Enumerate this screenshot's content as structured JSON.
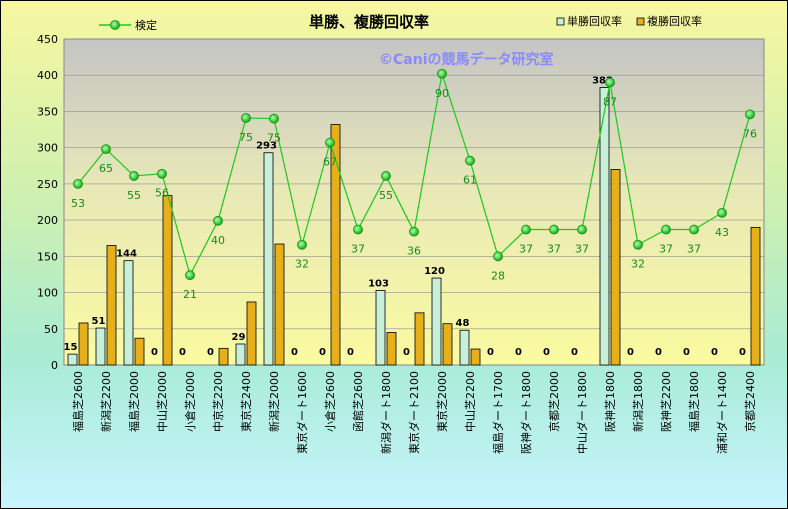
{
  "chart_data": {
    "type": "bar",
    "title": "単勝、複勝回収率",
    "watermark": "©Caniの競馬データ研究室",
    "categories": [
      "福島芝2600",
      "新潟芝2200",
      "福島芝2000",
      "中山芝2000",
      "小倉芝2000",
      "中京芝2200",
      "東京芝2400",
      "新潟芝2000",
      "東京ダート1600",
      "小倉芝2600",
      "函館芝2600",
      "新潟ダート1800",
      "東京ダート2100",
      "東京芝2000",
      "中山芝2200",
      "福島ダート1700",
      "阪神ダート1800",
      "京都芝2000",
      "中山ダート1800",
      "阪神芝1800",
      "新潟芝1800",
      "阪神芝2200",
      "福島芝1800",
      "浦和ダート1400",
      "京都芝2400"
    ],
    "ylim": [
      0,
      450
    ],
    "yticks": [
      "0",
      "50",
      "100",
      "150",
      "200",
      "250",
      "300",
      "350",
      "400",
      "450"
    ],
    "series": [
      {
        "name": "単勝回収率",
        "type": "bar",
        "color": "#c8f0d8",
        "values": [
          15,
          51,
          144,
          0,
          0,
          0,
          29,
          293,
          0,
          0,
          0,
          103,
          0,
          120,
          48,
          0,
          0,
          0,
          0,
          383,
          0,
          0,
          0,
          0,
          0
        ],
        "labels": [
          "15",
          "51",
          "144",
          "0",
          "0",
          "0",
          "29",
          "293",
          "0",
          "0",
          "0",
          "103",
          "0",
          "120",
          "48",
          "0",
          "0",
          "0",
          "0",
          "383",
          "0",
          "0",
          "0",
          "0",
          "0"
        ]
      },
      {
        "name": "複勝回収率",
        "type": "bar",
        "color": "#e8b018",
        "values": [
          58,
          165,
          37,
          234,
          0,
          23,
          87,
          167,
          0,
          332,
          0,
          45,
          72,
          57,
          22,
          0,
          0,
          0,
          0,
          270,
          0,
          0,
          0,
          0,
          190
        ]
      },
      {
        "name": "検定",
        "type": "line",
        "color": "#1ec81e",
        "values": [
          250,
          298,
          261,
          264,
          124,
          199,
          341,
          340,
          166,
          307,
          187,
          261,
          184,
          402,
          282,
          150,
          187,
          187,
          187,
          390,
          166,
          187,
          187,
          210,
          346
        ],
        "labels": [
          "53",
          "65",
          "55",
          "56",
          "21",
          "40",
          "75",
          "75",
          "32",
          "67",
          "37",
          "55",
          "36",
          "90",
          "61",
          "28",
          "37",
          "37",
          "37",
          "87",
          "32",
          "37",
          "37",
          "43",
          "76"
        ]
      }
    ],
    "grid": "horizontal",
    "legend_placement": "top"
  }
}
